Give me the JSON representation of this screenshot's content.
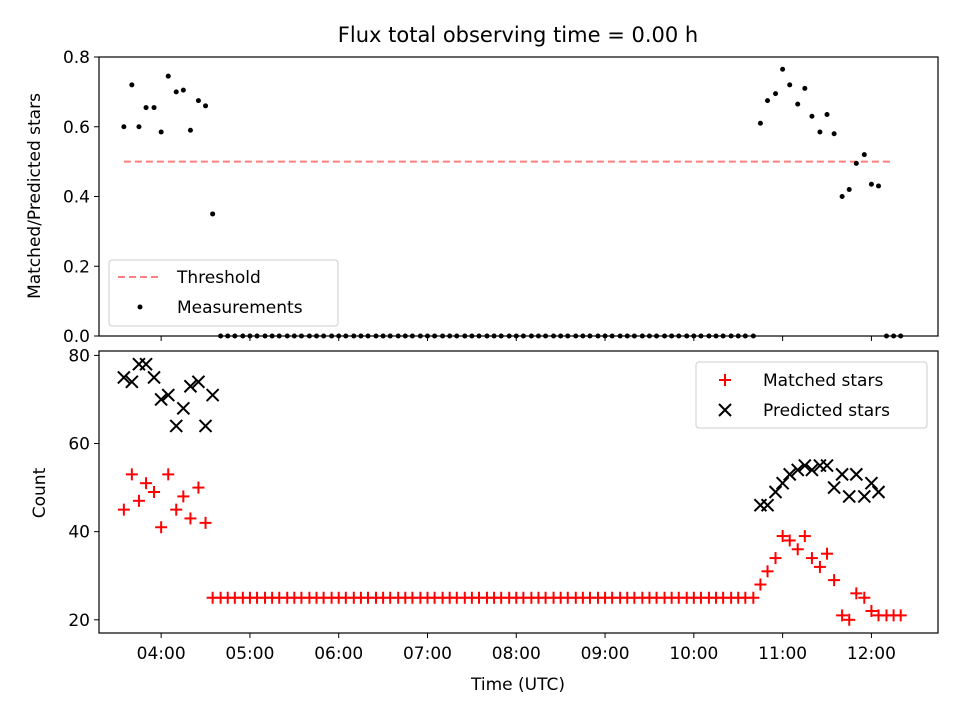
{
  "figure": {
    "title": "Flux total observing time = 0.00 h"
  },
  "chart_data": [
    {
      "type": "scatter",
      "panel": "top",
      "xlabel": "",
      "ylabel": "Matched/Predicted stars",
      "xlim_hours": [
        3.3,
        12.75
      ],
      "ylim": [
        0,
        0.8
      ],
      "yticks": [
        0.0,
        0.2,
        0.4,
        0.6,
        0.8
      ],
      "ytick_labels": [
        "0.0",
        "0.2",
        "0.4",
        "0.6",
        "0.8"
      ],
      "legend_position": "lower-left",
      "threshold": {
        "name": "Threshold",
        "value": 0.5,
        "x_range_hours": [
          3.58,
          12.25
        ],
        "color": "#ff7f7f"
      },
      "series": [
        {
          "name": "Measurements",
          "color": "#000000",
          "points": [
            [
              3.58,
              0.6
            ],
            [
              3.67,
              0.72
            ],
            [
              3.75,
              0.6
            ],
            [
              3.83,
              0.655
            ],
            [
              3.92,
              0.655
            ],
            [
              4.0,
              0.585
            ],
            [
              4.08,
              0.745
            ],
            [
              4.17,
              0.7
            ],
            [
              4.25,
              0.705
            ],
            [
              4.33,
              0.59
            ],
            [
              4.42,
              0.675
            ],
            [
              4.5,
              0.66
            ],
            [
              4.58,
              0.35
            ],
            [
              4.67,
              0.0
            ],
            [
              4.75,
              0.0
            ],
            [
              4.83,
              0.0
            ],
            [
              4.92,
              0.0
            ],
            [
              5.0,
              0.0
            ],
            [
              5.08,
              0.0
            ],
            [
              5.17,
              0.0
            ],
            [
              5.25,
              0.0
            ],
            [
              5.33,
              0.0
            ],
            [
              5.42,
              0.0
            ],
            [
              5.5,
              0.0
            ],
            [
              5.58,
              0.0
            ],
            [
              5.67,
              0.0
            ],
            [
              5.75,
              0.0
            ],
            [
              5.83,
              0.0
            ],
            [
              5.92,
              0.0
            ],
            [
              6.0,
              0.0
            ],
            [
              6.08,
              0.0
            ],
            [
              6.17,
              0.0
            ],
            [
              6.25,
              0.0
            ],
            [
              6.33,
              0.0
            ],
            [
              6.42,
              0.0
            ],
            [
              6.5,
              0.0
            ],
            [
              6.58,
              0.0
            ],
            [
              6.67,
              0.0
            ],
            [
              6.75,
              0.0
            ],
            [
              6.83,
              0.0
            ],
            [
              6.92,
              0.0
            ],
            [
              7.0,
              0.0
            ],
            [
              7.08,
              0.0
            ],
            [
              7.17,
              0.0
            ],
            [
              7.25,
              0.0
            ],
            [
              7.33,
              0.0
            ],
            [
              7.42,
              0.0
            ],
            [
              7.5,
              0.0
            ],
            [
              7.58,
              0.0
            ],
            [
              7.67,
              0.0
            ],
            [
              7.75,
              0.0
            ],
            [
              7.83,
              0.0
            ],
            [
              7.92,
              0.0
            ],
            [
              8.0,
              0.0
            ],
            [
              8.08,
              0.0
            ],
            [
              8.17,
              0.0
            ],
            [
              8.25,
              0.0
            ],
            [
              8.33,
              0.0
            ],
            [
              8.42,
              0.0
            ],
            [
              8.5,
              0.0
            ],
            [
              8.58,
              0.0
            ],
            [
              8.67,
              0.0
            ],
            [
              8.75,
              0.0
            ],
            [
              8.83,
              0.0
            ],
            [
              8.92,
              0.0
            ],
            [
              9.0,
              0.0
            ],
            [
              9.08,
              0.0
            ],
            [
              9.17,
              0.0
            ],
            [
              9.25,
              0.0
            ],
            [
              9.33,
              0.0
            ],
            [
              9.42,
              0.0
            ],
            [
              9.5,
              0.0
            ],
            [
              9.58,
              0.0
            ],
            [
              9.67,
              0.0
            ],
            [
              9.75,
              0.0
            ],
            [
              9.83,
              0.0
            ],
            [
              9.92,
              0.0
            ],
            [
              10.0,
              0.0
            ],
            [
              10.08,
              0.0
            ],
            [
              10.17,
              0.0
            ],
            [
              10.25,
              0.0
            ],
            [
              10.33,
              0.0
            ],
            [
              10.42,
              0.0
            ],
            [
              10.5,
              0.0
            ],
            [
              10.58,
              0.0
            ],
            [
              10.67,
              0.0
            ],
            [
              10.75,
              0.61
            ],
            [
              10.83,
              0.675
            ],
            [
              10.92,
              0.695
            ],
            [
              11.0,
              0.765
            ],
            [
              11.08,
              0.72
            ],
            [
              11.17,
              0.665
            ],
            [
              11.25,
              0.71
            ],
            [
              11.33,
              0.63
            ],
            [
              11.42,
              0.585
            ],
            [
              11.5,
              0.635
            ],
            [
              11.58,
              0.58
            ],
            [
              11.67,
              0.4
            ],
            [
              11.75,
              0.42
            ],
            [
              11.83,
              0.495
            ],
            [
              11.92,
              0.52
            ],
            [
              12.0,
              0.435
            ],
            [
              12.08,
              0.43
            ],
            [
              12.17,
              0.0
            ],
            [
              12.25,
              0.0
            ],
            [
              12.33,
              0.0
            ]
          ]
        }
      ]
    },
    {
      "type": "scatter",
      "panel": "bottom",
      "xlabel": "Time (UTC)",
      "ylabel": "Count",
      "xlim_hours": [
        3.3,
        12.75
      ],
      "xticks_hours": [
        4,
        5,
        6,
        7,
        8,
        9,
        10,
        11,
        12
      ],
      "xtick_labels": [
        "04:00",
        "05:00",
        "06:00",
        "07:00",
        "08:00",
        "09:00",
        "10:00",
        "11:00",
        "12:00"
      ],
      "ylim": [
        17,
        81
      ],
      "yticks": [
        20,
        40,
        60,
        80
      ],
      "ytick_labels": [
        "20",
        "40",
        "60",
        "80"
      ],
      "legend_position": "upper-right",
      "series": [
        {
          "name": "Matched stars",
          "marker": "plus",
          "color": "#ff0000",
          "points": [
            [
              3.58,
              45
            ],
            [
              3.67,
              53
            ],
            [
              3.75,
              47
            ],
            [
              3.83,
              51
            ],
            [
              3.92,
              49
            ],
            [
              4.0,
              41
            ],
            [
              4.08,
              53
            ],
            [
              4.17,
              45
            ],
            [
              4.25,
              48
            ],
            [
              4.33,
              43
            ],
            [
              4.42,
              50
            ],
            [
              4.5,
              42
            ],
            [
              4.58,
              25
            ],
            [
              4.67,
              25
            ],
            [
              4.75,
              25
            ],
            [
              4.83,
              25
            ],
            [
              4.92,
              25
            ],
            [
              5.0,
              25
            ],
            [
              5.08,
              25
            ],
            [
              5.17,
              25
            ],
            [
              5.25,
              25
            ],
            [
              5.33,
              25
            ],
            [
              5.42,
              25
            ],
            [
              5.5,
              25
            ],
            [
              5.58,
              25
            ],
            [
              5.67,
              25
            ],
            [
              5.75,
              25
            ],
            [
              5.83,
              25
            ],
            [
              5.92,
              25
            ],
            [
              6.0,
              25
            ],
            [
              6.08,
              25
            ],
            [
              6.17,
              25
            ],
            [
              6.25,
              25
            ],
            [
              6.33,
              25
            ],
            [
              6.42,
              25
            ],
            [
              6.5,
              25
            ],
            [
              6.58,
              25
            ],
            [
              6.67,
              25
            ],
            [
              6.75,
              25
            ],
            [
              6.83,
              25
            ],
            [
              6.92,
              25
            ],
            [
              7.0,
              25
            ],
            [
              7.08,
              25
            ],
            [
              7.17,
              25
            ],
            [
              7.25,
              25
            ],
            [
              7.33,
              25
            ],
            [
              7.42,
              25
            ],
            [
              7.5,
              25
            ],
            [
              7.58,
              25
            ],
            [
              7.67,
              25
            ],
            [
              7.75,
              25
            ],
            [
              7.83,
              25
            ],
            [
              7.92,
              25
            ],
            [
              8.0,
              25
            ],
            [
              8.08,
              25
            ],
            [
              8.17,
              25
            ],
            [
              8.25,
              25
            ],
            [
              8.33,
              25
            ],
            [
              8.42,
              25
            ],
            [
              8.5,
              25
            ],
            [
              8.58,
              25
            ],
            [
              8.67,
              25
            ],
            [
              8.75,
              25
            ],
            [
              8.83,
              25
            ],
            [
              8.92,
              25
            ],
            [
              9.0,
              25
            ],
            [
              9.08,
              25
            ],
            [
              9.17,
              25
            ],
            [
              9.25,
              25
            ],
            [
              9.33,
              25
            ],
            [
              9.42,
              25
            ],
            [
              9.5,
              25
            ],
            [
              9.58,
              25
            ],
            [
              9.67,
              25
            ],
            [
              9.75,
              25
            ],
            [
              9.83,
              25
            ],
            [
              9.92,
              25
            ],
            [
              10.0,
              25
            ],
            [
              10.08,
              25
            ],
            [
              10.17,
              25
            ],
            [
              10.25,
              25
            ],
            [
              10.33,
              25
            ],
            [
              10.42,
              25
            ],
            [
              10.5,
              25
            ],
            [
              10.58,
              25
            ],
            [
              10.67,
              25
            ],
            [
              10.75,
              28
            ],
            [
              10.83,
              31
            ],
            [
              10.92,
              34
            ],
            [
              11.0,
              39
            ],
            [
              11.08,
              38
            ],
            [
              11.17,
              36
            ],
            [
              11.25,
              39
            ],
            [
              11.33,
              34
            ],
            [
              11.42,
              32
            ],
            [
              11.5,
              35
            ],
            [
              11.58,
              29
            ],
            [
              11.67,
              21
            ],
            [
              11.75,
              20
            ],
            [
              11.83,
              26
            ],
            [
              11.92,
              25
            ],
            [
              12.0,
              22
            ],
            [
              12.08,
              21
            ],
            [
              12.17,
              21
            ],
            [
              12.25,
              21
            ],
            [
              12.33,
              21
            ]
          ]
        },
        {
          "name": "Predicted stars",
          "marker": "x",
          "color": "#000000",
          "points": [
            [
              3.58,
              75
            ],
            [
              3.67,
              74
            ],
            [
              3.75,
              78
            ],
            [
              3.83,
              78
            ],
            [
              3.92,
              75
            ],
            [
              4.0,
              70
            ],
            [
              4.08,
              71
            ],
            [
              4.17,
              64
            ],
            [
              4.25,
              68
            ],
            [
              4.33,
              73
            ],
            [
              4.42,
              74
            ],
            [
              4.5,
              64
            ],
            [
              4.58,
              71
            ],
            [
              10.75,
              46
            ],
            [
              10.83,
              46
            ],
            [
              10.92,
              49
            ],
            [
              11.0,
              51
            ],
            [
              11.08,
              53
            ],
            [
              11.17,
              54
            ],
            [
              11.25,
              55
            ],
            [
              11.33,
              54
            ],
            [
              11.42,
              55
            ],
            [
              11.5,
              55
            ],
            [
              11.58,
              50
            ],
            [
              11.67,
              53
            ],
            [
              11.75,
              48
            ],
            [
              11.83,
              53
            ],
            [
              11.92,
              48
            ],
            [
              12.0,
              51
            ],
            [
              12.08,
              49
            ]
          ]
        }
      ]
    }
  ]
}
